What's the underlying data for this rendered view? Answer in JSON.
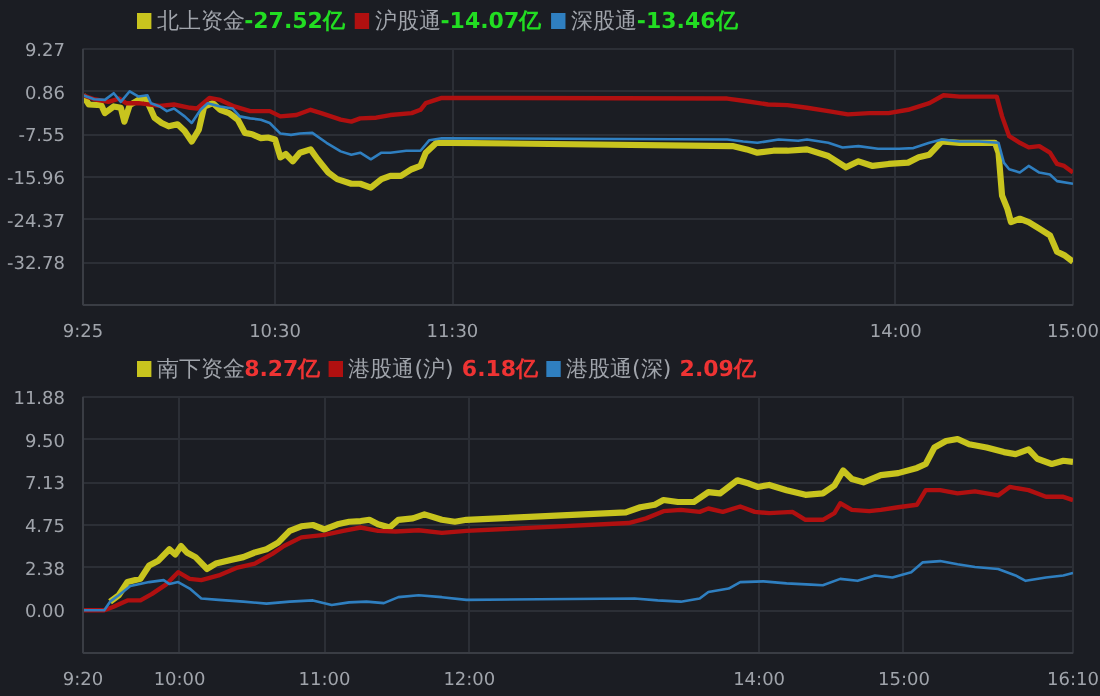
{
  "chart_data": [
    {
      "type": "line",
      "legend": "top left",
      "grid": true,
      "annotations": [
        "-27.52亿",
        "-14.07亿",
        "-13.46亿"
      ],
      "xlim": [
        9.4167,
        15
      ],
      "xticks": [
        {
          "value": 9.4167,
          "label": "9:25"
        },
        {
          "value": 10.5,
          "label": "10:30"
        },
        {
          "value": 11.5,
          "label": "11:30"
        },
        {
          "value": 14,
          "label": "14:00"
        },
        {
          "value": 15,
          "label": "15:00"
        }
      ],
      "ylim": [
        -41.19,
        9.27
      ],
      "yticks": [
        9.27,
        0.86,
        -7.55,
        -15.96,
        -24.37,
        -32.78
      ],
      "series": [
        {
          "name": "北上资金",
          "color": "#c8c41e",
          "x": [
            9.4167,
            9.45,
            9.52,
            9.54,
            9.59,
            9.63,
            9.65,
            9.68,
            9.73,
            9.77,
            9.8,
            9.82,
            9.86,
            9.9,
            9.95,
            9.99,
            10.03,
            10.07,
            10.1,
            10.15,
            10.19,
            10.24,
            10.29,
            10.33,
            10.37,
            10.42,
            10.46,
            10.5,
            10.53,
            10.56,
            10.6,
            10.64,
            10.7,
            10.74,
            10.8,
            10.85,
            10.93,
            10.98,
            11.04,
            11.1,
            11.15,
            11.21,
            11.27,
            11.32,
            11.35,
            11.41,
            11.49,
            13.08,
            13.16,
            13.22,
            13.31,
            13.39,
            13.5,
            13.62,
            13.72,
            13.79,
            13.87,
            13.96,
            14.07,
            14.13,
            14.19,
            14.26,
            14.36,
            14.47,
            14.56,
            14.58,
            14.6,
            14.63,
            14.65,
            14.7,
            14.75,
            14.81,
            14.87,
            14.91,
            14.95,
            15
          ],
          "values": [
            0.15,
            -1.67,
            -1.8,
            -3.36,
            -2.06,
            -2.32,
            -5.05,
            -1.8,
            -0.76,
            -0.37,
            -2.71,
            -4.27,
            -5.31,
            -5.97,
            -5.57,
            -6.88,
            -8.96,
            -6.62,
            -2.06,
            -1.41,
            -2.71,
            -3.36,
            -4.66,
            -7.27,
            -7.53,
            -8.31,
            -8.18,
            -8.57,
            -12.08,
            -11.43,
            -12.87,
            -11.17,
            -10.52,
            -12.47,
            -15.08,
            -16.38,
            -17.29,
            -17.29,
            -18.07,
            -16.38,
            -15.73,
            -15.73,
            -14.43,
            -13.78,
            -11.17,
            -9.22,
            -9.22,
            -9.87,
            -10.52,
            -11.17,
            -10.78,
            -10.78,
            -10.52,
            -11.82,
            -14.04,
            -12.87,
            -13.78,
            -13.39,
            -13.13,
            -12.08,
            -11.56,
            -8.96,
            -9.22,
            -9.22,
            -9.22,
            -11.17,
            -19.64,
            -22.24,
            -24.84,
            -24.19,
            -24.84,
            -26.15,
            -27.45,
            -30.7,
            -31.35,
            -32.66
          ]
        },
        {
          "name": "沪股通",
          "color": "#b01010",
          "x": [
            9.4167,
            9.48,
            9.56,
            9.62,
            9.66,
            9.73,
            9.85,
            9.93,
            10.02,
            10.06,
            10.13,
            10.19,
            10.27,
            10.36,
            10.47,
            10.53,
            10.62,
            10.7,
            10.76,
            10.87,
            10.93,
            10.98,
            11.07,
            11.15,
            11.27,
            11.32,
            11.35,
            11.44,
            13.05,
            13.16,
            13.28,
            13.39,
            13.5,
            13.62,
            13.73,
            13.85,
            13.96,
            14.07,
            14.19,
            14.27,
            14.36,
            14.47,
            14.57,
            14.6,
            14.64,
            14.7,
            14.75,
            14.81,
            14.87,
            14.91,
            14.95,
            15
          ],
          "values": [
            0.15,
            -0.63,
            -1.15,
            -0.5,
            -1.41,
            -1.41,
            -1.93,
            -1.67,
            -2.32,
            -2.45,
            -0.37,
            -0.76,
            -2.06,
            -2.97,
            -2.97,
            -4.01,
            -3.75,
            -2.71,
            -3.36,
            -4.66,
            -5.05,
            -4.4,
            -4.27,
            -3.75,
            -3.36,
            -2.71,
            -1.41,
            -0.37,
            -0.5,
            -1.02,
            -1.67,
            -1.8,
            -2.32,
            -2.97,
            -3.62,
            -3.36,
            -3.36,
            -2.71,
            -1.41,
            0.15,
            -0.11,
            -0.11,
            -0.11,
            -4.01,
            -7.92,
            -9.22,
            -10.13,
            -9.87,
            -11.17,
            -13.39,
            -13.78,
            -15.08
          ]
        },
        {
          "name": "深股通",
          "color": "#2f7fc0",
          "x": [
            9.4167,
            9.48,
            9.54,
            9.59,
            9.63,
            9.68,
            9.73,
            9.78,
            9.8,
            9.85,
            9.89,
            9.93,
            9.99,
            10.03,
            10.08,
            10.12,
            10.19,
            10.26,
            10.3,
            10.36,
            10.42,
            10.47,
            10.53,
            10.59,
            10.64,
            10.71,
            10.79,
            10.87,
            10.93,
            10.98,
            11.04,
            11.1,
            11.15,
            11.24,
            11.32,
            11.37,
            11.44,
            13.05,
            13.14,
            13.22,
            13.34,
            13.45,
            13.5,
            13.62,
            13.7,
            13.79,
            13.9,
            14.02,
            14.1,
            14.19,
            14.26,
            14.36,
            14.47,
            14.58,
            14.61,
            14.64,
            14.7,
            14.75,
            14.81,
            14.87,
            14.91,
            15
          ],
          "values": [
            0.15,
            -0.63,
            -0.76,
            0.55,
            -1.15,
            0.94,
            -0.11,
            0.15,
            -1.41,
            -2.06,
            -2.97,
            -2.45,
            -4.01,
            -5.31,
            -2.71,
            -1.41,
            -2.06,
            -2.45,
            -4.01,
            -4.4,
            -4.66,
            -5.31,
            -7.4,
            -7.66,
            -7.4,
            -7.27,
            -9.22,
            -10.91,
            -11.56,
            -11.17,
            -12.47,
            -11.17,
            -11.17,
            -10.78,
            -10.78,
            -8.7,
            -8.31,
            -8.57,
            -8.96,
            -9.22,
            -8.57,
            -8.83,
            -8.57,
            -9.22,
            -10.13,
            -9.87,
            -10.39,
            -10.39,
            -10.26,
            -9.22,
            -8.57,
            -8.96,
            -8.96,
            -9.22,
            -13.13,
            -14.43,
            -15.08,
            -13.78,
            -15.08,
            -15.47,
            -16.77,
            -17.29
          ]
        }
      ]
    },
    {
      "type": "line",
      "legend": "top left",
      "grid": true,
      "annotations": [
        "8.27亿",
        "6.18亿",
        "2.09亿"
      ],
      "xlim": [
        9.3333,
        16.1667
      ],
      "xticks": [
        {
          "value": 9.3333,
          "label": "9:20"
        },
        {
          "value": 10,
          "label": "10:00"
        },
        {
          "value": 11,
          "label": "11:00"
        },
        {
          "value": 12,
          "label": "12:00"
        },
        {
          "value": 14,
          "label": "14:00"
        },
        {
          "value": 15,
          "label": "15:00"
        },
        {
          "value": 16.1667,
          "label": "16:10"
        }
      ],
      "ylim": [
        -2.38,
        11.88
      ],
      "yticks": [
        11.88,
        {
          "value": 9.5,
          "label": "9.50"
        },
        7.13,
        4.75,
        2.38,
        {
          "value": 0,
          "label": "0.00"
        }
      ],
      "series": [
        {
          "name": "南下资金",
          "color": "#c8c41e",
          "x": [
            9.52,
            9.58,
            9.64,
            9.73,
            9.79,
            9.85,
            9.93,
            9.97,
            10.01,
            10.05,
            10.11,
            10.19,
            10.25,
            10.36,
            10.44,
            10.52,
            10.6,
            10.68,
            10.76,
            10.84,
            10.92,
            11.0,
            11.09,
            11.17,
            11.25,
            11.31,
            11.37,
            11.45,
            11.51,
            11.61,
            11.69,
            11.81,
            11.9,
            11.98,
            13.08,
            13.18,
            13.28,
            13.34,
            13.44,
            13.55,
            13.65,
            13.73,
            13.85,
            13.93,
            13.99,
            14.07,
            14.19,
            14.32,
            14.44,
            14.52,
            14.58,
            14.64,
            14.72,
            14.84,
            14.96,
            15.09,
            15.15,
            15.21,
            15.29,
            15.37,
            15.45,
            15.57,
            15.69,
            15.77,
            15.86,
            15.92,
            16.02,
            16.1,
            16.1667
          ],
          "values": [
            0.48,
            0.84,
            1.57,
            1.75,
            2.49,
            2.74,
            3.4,
            3.11,
            3.58,
            3.22,
            2.96,
            2.3,
            2.6,
            2.81,
            2.96,
            3.22,
            3.4,
            3.77,
            4.42,
            4.68,
            4.75,
            4.5,
            4.79,
            4.93,
            4.97,
            5.04,
            4.79,
            4.61,
            5.04,
            5.12,
            5.34,
            5.04,
            4.93,
            5.04,
            5.45,
            5.74,
            5.88,
            6.14,
            6.03,
            6.03,
            6.58,
            6.51,
            7.24,
            7.06,
            6.87,
            6.98,
            6.69,
            6.43,
            6.51,
            6.95,
            7.79,
            7.31,
            7.13,
            7.53,
            7.64,
            7.93,
            8.15,
            9.07,
            9.43,
            9.54,
            9.25,
            9.07,
            8.81,
            8.7,
            8.96,
            8.44,
            8.15,
            8.33,
            8.26
          ]
        },
        {
          "name": "港股通(沪)",
          "color": "#b01010",
          "x": [
            9.3333,
            9.48,
            9.54,
            9.64,
            9.73,
            9.81,
            9.91,
            9.99,
            10.07,
            10.15,
            10.27,
            10.4,
            10.52,
            10.64,
            10.72,
            10.84,
            11.0,
            11.13,
            11.25,
            11.37,
            11.49,
            11.65,
            11.81,
            11.98,
            13.1,
            13.22,
            13.34,
            13.46,
            13.59,
            13.65,
            13.75,
            13.87,
            13.97,
            14.07,
            14.23,
            14.32,
            14.44,
            14.52,
            14.56,
            14.64,
            14.76,
            14.84,
            14.96,
            15.09,
            15.15,
            15.25,
            15.37,
            15.49,
            15.65,
            15.73,
            15.86,
            15.98,
            16.1,
            16.1667
          ],
          "values": [
            0,
            0,
            0.18,
            0.55,
            0.55,
            0.91,
            1.46,
            2.12,
            1.75,
            1.68,
            1.94,
            2.38,
            2.6,
            3.14,
            3.58,
            4.06,
            4.2,
            4.42,
            4.61,
            4.42,
            4.39,
            4.46,
            4.31,
            4.42,
            4.86,
            5.12,
            5.52,
            5.59,
            5.48,
            5.67,
            5.48,
            5.78,
            5.48,
            5.41,
            5.48,
            5.04,
            5.04,
            5.41,
            5.96,
            5.59,
            5.52,
            5.59,
            5.74,
            5.88,
            6.69,
            6.69,
            6.51,
            6.62,
            6.4,
            6.87,
            6.69,
            6.32,
            6.32,
            6.14
          ]
        },
        {
          "name": "港股通(深)",
          "color": "#2f7fc0",
          "x": [
            9.3333,
            9.48,
            9.52,
            9.58,
            9.66,
            9.79,
            9.89,
            9.93,
            9.99,
            10.07,
            10.15,
            10.27,
            10.44,
            10.6,
            10.76,
            10.92,
            11.05,
            11.17,
            11.29,
            11.41,
            11.51,
            11.65,
            11.81,
            11.98,
            13.14,
            13.3,
            13.46,
            13.59,
            13.65,
            13.79,
            13.87,
            14.03,
            14.19,
            14.36,
            14.44,
            14.56,
            14.68,
            14.8,
            14.92,
            15.05,
            15.13,
            15.25,
            15.37,
            15.49,
            15.65,
            15.77,
            15.84,
            15.98,
            16.1,
            16.1667
          ],
          "values": [
            0,
            0,
            0.48,
            0.84,
            1.35,
            1.57,
            1.68,
            1.46,
            1.57,
            1.21,
            0.66,
            0.58,
            0.48,
            0.37,
            0.48,
            0.55,
            0.29,
            0.44,
            0.48,
            0.4,
            0.73,
            0.84,
            0.73,
            0.58,
            0.66,
            0.55,
            0.48,
            0.66,
            1.02,
            1.21,
            1.57,
            1.61,
            1.5,
            1.43,
            1.39,
            1.75,
            1.64,
            1.94,
            1.83,
            2.12,
            2.67,
            2.74,
            2.56,
            2.41,
            2.3,
            1.94,
            1.64,
            1.83,
            1.94,
            2.08
          ]
        }
      ]
    }
  ]
}
